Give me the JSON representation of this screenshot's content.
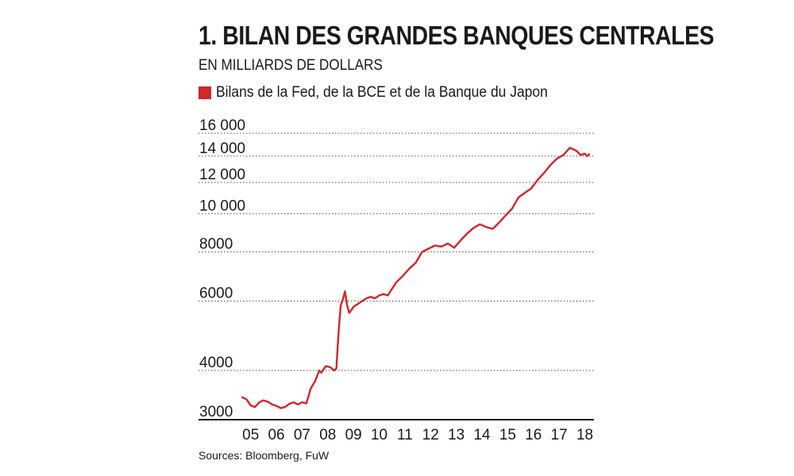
{
  "header": {
    "title": "1. BILAN DES GRANDES BANQUES CENTRALES",
    "subtitle": "EN MILLIARDS DE DOLLARS"
  },
  "footer": {
    "source": "Sources: Bloomberg, FuW"
  },
  "colors": {
    "series": "#d3252b",
    "grid": "#555555",
    "text": "#1a1a1a"
  },
  "chart_data": {
    "type": "line",
    "title": "1. BILAN DES GRANDES BANQUES CENTRALES",
    "ylabel": "EN MILLIARDS DE DOLLARS",
    "xlabel": "",
    "y_scale": "log",
    "ylim": [
      3000,
      16000
    ],
    "grid": "horizontal dotted",
    "legend_position": "top-left",
    "y_ticks": [
      3000,
      4000,
      6000,
      8000,
      10000,
      12000,
      14000,
      16000
    ],
    "y_tick_labels": [
      "3000",
      "4000",
      "6000",
      "8000",
      "10 000",
      "12 000",
      "14 000",
      "16 000"
    ],
    "x_ticks": [
      "2005-01",
      "2006-01",
      "2007-01",
      "2008-01",
      "2009-01",
      "2010-01",
      "2011-01",
      "2012-01",
      "2013-01",
      "2014-01",
      "2015-01",
      "2016-01",
      "2017-01",
      "2018-01"
    ],
    "x_tick_labels": [
      "05",
      "06",
      "07",
      "08",
      "09",
      "10",
      "11",
      "12",
      "13",
      "14",
      "15",
      "16",
      "17",
      "18"
    ],
    "series": [
      {
        "name": "Bilans de la Fed, de la BCE et de la Banque du Japon",
        "points": [
          [
            "2004-12",
            3420
          ],
          [
            "2005-02",
            3380
          ],
          [
            "2005-04",
            3260
          ],
          [
            "2005-06",
            3230
          ],
          [
            "2005-08",
            3320
          ],
          [
            "2005-10",
            3360
          ],
          [
            "2005-12",
            3330
          ],
          [
            "2006-02",
            3280
          ],
          [
            "2006-04",
            3250
          ],
          [
            "2006-06",
            3210
          ],
          [
            "2006-08",
            3230
          ],
          [
            "2006-10",
            3290
          ],
          [
            "2006-12",
            3320
          ],
          [
            "2007-02",
            3280
          ],
          [
            "2007-04",
            3320
          ],
          [
            "2007-06",
            3300
          ],
          [
            "2007-08",
            3600
          ],
          [
            "2007-10",
            3750
          ],
          [
            "2007-12",
            4000
          ],
          [
            "2008-01",
            3950
          ],
          [
            "2008-03",
            4100
          ],
          [
            "2008-05",
            4080
          ],
          [
            "2008-07",
            4000
          ],
          [
            "2008-08",
            4050
          ],
          [
            "2008-09",
            5000
          ],
          [
            "2008-10",
            5850
          ],
          [
            "2008-11",
            6050
          ],
          [
            "2008-12",
            6350
          ],
          [
            "2009-01",
            5850
          ],
          [
            "2009-02",
            5600
          ],
          [
            "2009-04",
            5800
          ],
          [
            "2009-06",
            5900
          ],
          [
            "2009-08",
            6000
          ],
          [
            "2009-10",
            6100
          ],
          [
            "2009-12",
            6150
          ],
          [
            "2010-02",
            6100
          ],
          [
            "2010-04",
            6200
          ],
          [
            "2010-06",
            6250
          ],
          [
            "2010-08",
            6200
          ],
          [
            "2010-10",
            6450
          ],
          [
            "2010-12",
            6700
          ],
          [
            "2011-03",
            6950
          ],
          [
            "2011-06",
            7250
          ],
          [
            "2011-09",
            7500
          ],
          [
            "2011-12",
            8000
          ],
          [
            "2012-03",
            8150
          ],
          [
            "2012-06",
            8300
          ],
          [
            "2012-09",
            8250
          ],
          [
            "2012-12",
            8400
          ],
          [
            "2013-03",
            8200
          ],
          [
            "2013-06",
            8550
          ],
          [
            "2013-09",
            8900
          ],
          [
            "2013-12",
            9200
          ],
          [
            "2014-03",
            9400
          ],
          [
            "2014-06",
            9250
          ],
          [
            "2014-09",
            9150
          ],
          [
            "2014-12",
            9500
          ],
          [
            "2015-03",
            9900
          ],
          [
            "2015-06",
            10300
          ],
          [
            "2015-09",
            11000
          ],
          [
            "2015-12",
            11300
          ],
          [
            "2016-03",
            11600
          ],
          [
            "2016-06",
            12200
          ],
          [
            "2016-09",
            12700
          ],
          [
            "2016-12",
            13300
          ],
          [
            "2017-03",
            13800
          ],
          [
            "2017-06",
            14100
          ],
          [
            "2017-09",
            14700
          ],
          [
            "2017-12",
            14450
          ],
          [
            "2018-02",
            14100
          ],
          [
            "2018-04",
            14200
          ],
          [
            "2018-05",
            14000
          ],
          [
            "2018-06",
            14150
          ]
        ]
      }
    ]
  }
}
